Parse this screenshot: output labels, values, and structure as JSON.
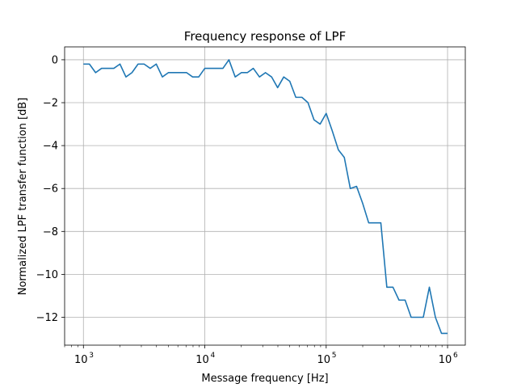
{
  "chart_data": {
    "type": "line",
    "title": "Frequency response of LPF",
    "xlabel": "Message frequency [Hz]",
    "ylabel": "Normalized LPF transfer function [dB]",
    "xscale": "log",
    "xlim": [
      700,
      1400000
    ],
    "ylim": [
      -13.3,
      0.6
    ],
    "grid": true,
    "x_ticks": [
      {
        "value": 1000,
        "base": "10",
        "exp": "3"
      },
      {
        "value": 10000,
        "base": "10",
        "exp": "4"
      },
      {
        "value": 100000,
        "base": "10",
        "exp": "5"
      },
      {
        "value": 1000000,
        "base": "10",
        "exp": "6"
      }
    ],
    "y_ticks": [
      0,
      -2,
      -4,
      -6,
      -8,
      -10,
      -12
    ],
    "y_tick_labels": [
      "0",
      "−2",
      "−4",
      "−6",
      "−8",
      "−10",
      "−12"
    ],
    "series": [
      {
        "color": "#1f77b4",
        "x": [
          1000,
          1120,
          1260,
          1410,
          1580,
          1780,
          2000,
          2240,
          2510,
          2820,
          3160,
          3550,
          3980,
          4470,
          5010,
          5620,
          6310,
          7080,
          7940,
          8910,
          10000,
          11200,
          12600,
          14100,
          15800,
          17800,
          20000,
          22400,
          25100,
          28200,
          31600,
          35500,
          39800,
          44700,
          50100,
          56200,
          63100,
          70800,
          79400,
          89100,
          100000,
          112000,
          126000,
          141000,
          158000,
          178000,
          200000,
          224000,
          251000,
          282000,
          316000,
          355000,
          398000,
          447000,
          501000,
          562000,
          631000,
          708000,
          794000,
          891000,
          1000000
        ],
        "y": [
          -0.2,
          -0.2,
          -0.6,
          -0.4,
          -0.4,
          -0.4,
          -0.2,
          -0.8,
          -0.6,
          -0.2,
          -0.2,
          -0.4,
          -0.2,
          -0.8,
          -0.6,
          -0.6,
          -0.6,
          -0.6,
          -0.8,
          -0.8,
          -0.4,
          -0.4,
          -0.4,
          -0.4,
          0.0,
          -0.8,
          -0.6,
          -0.6,
          -0.4,
          -0.8,
          -0.6,
          -0.8,
          -1.3,
          -0.8,
          -1.0,
          -1.75,
          -1.75,
          -2.0,
          -2.8,
          -3.0,
          -2.5,
          -3.3,
          -4.2,
          -4.55,
          -6.0,
          -5.9,
          -6.7,
          -7.6,
          -7.6,
          -7.6,
          -10.6,
          -10.6,
          -11.2,
          -11.2,
          -12.0,
          -12.0,
          -12.0,
          -10.6,
          -12.0,
          -12.75,
          -12.75
        ]
      }
    ]
  }
}
